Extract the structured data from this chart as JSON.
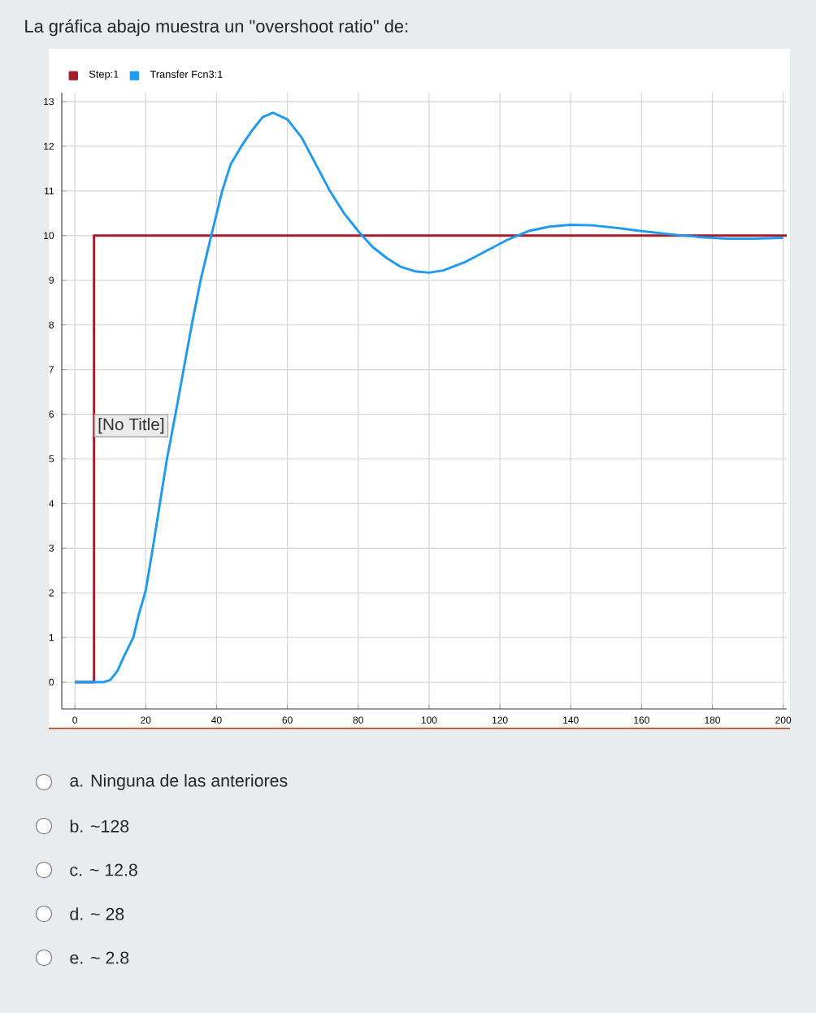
{
  "chart_data": {
    "type": "line",
    "title": "La gráfica abajo muestra un \"overshoot ratio\" de:",
    "series": [
      {
        "name": "Step:1",
        "type": "step",
        "color": "#a51d2d",
        "x": [
          0,
          5.4,
          201
        ],
        "values": [
          0,
          10,
          10
        ]
      },
      {
        "name": "Transfer Fcn3:1",
        "color": "#1e9bf0",
        "x": [
          0,
          8,
          10,
          12,
          14,
          16.5,
          18,
          20,
          22,
          24,
          26,
          28.4,
          30.7,
          33,
          35.5,
          38.5,
          41.6,
          44,
          47,
          50,
          53,
          56,
          60,
          64,
          68,
          72,
          76,
          80,
          84,
          88,
          92,
          96,
          100,
          104,
          110,
          116,
          122,
          128,
          134,
          140,
          146,
          152,
          160,
          168,
          176,
          184,
          192,
          200
        ],
        "values": [
          0,
          0,
          0.05,
          0.25,
          0.6,
          1,
          1.5,
          2.05,
          3,
          4,
          5,
          6,
          7,
          8,
          9,
          10,
          11,
          11.6,
          12,
          12.35,
          12.65,
          12.75,
          12.6,
          12.2,
          11.6,
          11.0,
          10.5,
          10.1,
          9.75,
          9.5,
          9.3,
          9.2,
          9.17,
          9.22,
          9.4,
          9.65,
          9.9,
          10.1,
          10.2,
          10.24,
          10.23,
          10.18,
          10.1,
          10.03,
          9.97,
          9.93,
          9.93,
          9.95
        ]
      }
    ],
    "xlim": [
      -3.7,
      201
    ],
    "ylim": [
      -0.6,
      13.2
    ],
    "xticks": [
      0,
      20,
      40,
      60,
      80,
      100,
      120,
      140,
      160,
      180,
      200
    ],
    "yticks": [
      0,
      1,
      2,
      3,
      4,
      5,
      6,
      7,
      8,
      9,
      10,
      11,
      12,
      13
    ],
    "grid": true,
    "legend": "top left",
    "marker": "none",
    "line_style": "solid",
    "annotations": [
      {
        "text": "[No Title]",
        "x": 5.4,
        "y": 6
      },
      "a. Ninguna de las anteriores",
      "b. ~128",
      "c. ~ 12.8",
      "d. ~ 28",
      "e. ~ 2.8"
    ]
  }
}
